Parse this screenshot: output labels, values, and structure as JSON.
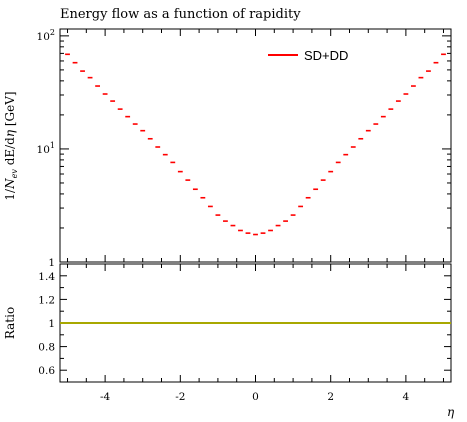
{
  "chart_data": {
    "type": "line",
    "title": "Energy flow as a function of rapidity",
    "xlabel": "η",
    "ylabel": "1/N_ev dE/dη [GeV]",
    "ylabel_parts": {
      "prefix": "1/",
      "N": "N",
      "ev": "ev",
      "mid": " dE/d",
      "eta": "η",
      "unit": " [GeV]"
    },
    "xlim": [
      -5.2,
      5.2
    ],
    "ylim": [
      1.0,
      115
    ],
    "yscale": "log",
    "x_ticks": [
      -4,
      -2,
      0,
      2,
      4
    ],
    "x_tick_labels": [
      "-4",
      "-2",
      "0",
      "2",
      "4"
    ],
    "y_tick_labels": [
      {
        "value": 100,
        "base": "10",
        "exp": "2"
      },
      {
        "value": 10,
        "base": "10",
        "exp": "1"
      },
      {
        "value": 1,
        "base": "1",
        "exp": ""
      }
    ],
    "legend": {
      "position": "top-right",
      "entries": [
        "SD+DD"
      ]
    },
    "series": [
      {
        "name": "SD+DD",
        "color": "#ff0000",
        "x": [
          -5.0,
          -4.8,
          -4.6,
          -4.4,
          -4.2,
          -4.0,
          -3.8,
          -3.6,
          -3.4,
          -3.2,
          -3.0,
          -2.8,
          -2.6,
          -2.4,
          -2.2,
          -2.0,
          -1.8,
          -1.6,
          -1.4,
          -1.2,
          -1.0,
          -0.8,
          -0.6,
          -0.4,
          -0.2,
          0.0,
          0.2,
          0.4,
          0.6,
          0.8,
          1.0,
          1.2,
          1.4,
          1.6,
          1.8,
          2.0,
          2.2,
          2.4,
          2.6,
          2.8,
          3.0,
          3.2,
          3.4,
          3.6,
          3.8,
          4.0,
          4.2,
          4.4,
          4.6,
          4.8,
          5.0
        ],
        "y": [
          68.7,
          57.9,
          48.8,
          42.7,
          36.0,
          30.6,
          26.5,
          22.5,
          19.3,
          16.6,
          14.5,
          12.3,
          10.4,
          8.9,
          7.6,
          6.3,
          5.3,
          4.4,
          3.7,
          3.1,
          2.6,
          2.3,
          2.1,
          1.9,
          1.8,
          1.75,
          1.8,
          1.9,
          2.1,
          2.3,
          2.6,
          3.1,
          3.7,
          4.4,
          5.3,
          6.3,
          7.6,
          8.9,
          10.4,
          12.3,
          14.5,
          16.6,
          19.3,
          22.5,
          26.5,
          30.6,
          36.0,
          42.7,
          48.8,
          57.9,
          68.7
        ],
        "bin_width": 0.2
      }
    ],
    "ratio": {
      "ylabel": "Ratio",
      "ylim": [
        0.5,
        1.5
      ],
      "y_ticks": [
        0.6,
        0.8,
        1,
        1.2,
        1.4
      ],
      "y_tick_labels": [
        "0.6",
        "0.8",
        "1",
        "1.2",
        "1.4"
      ],
      "reference_value": 1.0,
      "line_color": "#a8a800"
    }
  }
}
